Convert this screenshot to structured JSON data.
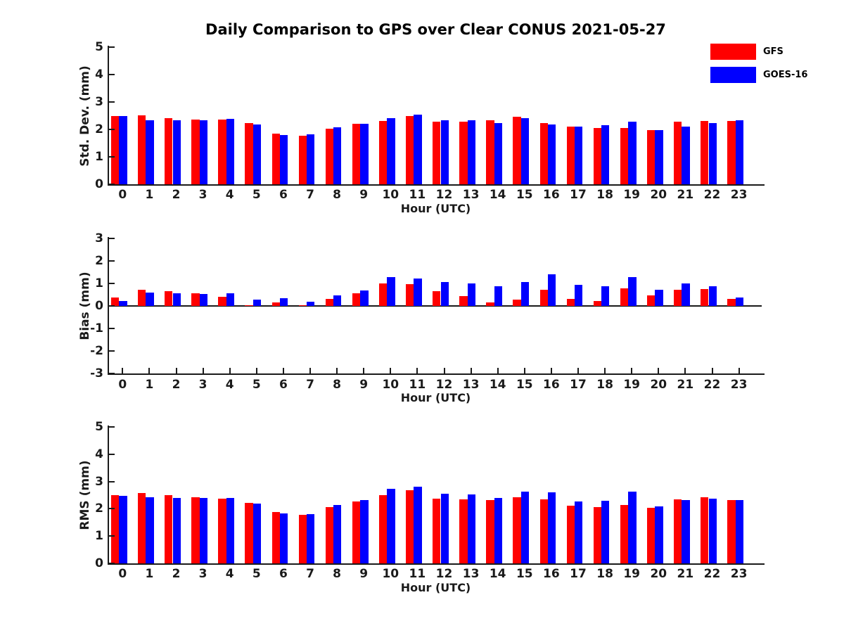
{
  "title": "Daily Comparison to GPS over Clear CONUS 2021-05-27",
  "legend": {
    "items": [
      {
        "label": "GFS",
        "color": "#ff0000"
      },
      {
        "label": "GOES-16",
        "color": "#0000ff"
      }
    ]
  },
  "colors": {
    "axis": "#1a1a1a",
    "background": "#ffffff",
    "gfs": "#ff0000",
    "goes16": "#0000ff"
  },
  "chart_data": [
    {
      "type": "bar",
      "ylabel": "Std. Dev. (mm)",
      "xlabel": "Hour (UTC)",
      "ylim": [
        0,
        5
      ],
      "yticks": [
        0,
        1,
        2,
        3,
        4,
        5
      ],
      "grid": false,
      "legend_position": "upper right outside",
      "categories": [
        "0",
        "1",
        "2",
        "3",
        "4",
        "5",
        "6",
        "7",
        "8",
        "9",
        "10",
        "11",
        "12",
        "13",
        "14",
        "15",
        "16",
        "17",
        "18",
        "19",
        "20",
        "21",
        "22",
        "23"
      ],
      "series": [
        {
          "name": "GFS",
          "color": "#ff0000",
          "values": [
            2.5,
            2.51,
            2.42,
            2.37,
            2.37,
            2.22,
            1.85,
            1.76,
            2.02,
            2.2,
            2.3,
            2.5,
            2.27,
            2.29,
            2.34,
            2.46,
            2.23,
            2.1,
            2.05,
            2.05,
            1.98,
            2.27,
            2.32,
            2.32
          ]
        },
        {
          "name": "GOES-16",
          "color": "#0000ff",
          "values": [
            2.5,
            2.34,
            2.34,
            2.34,
            2.38,
            2.18,
            1.8,
            1.81,
            2.07,
            2.2,
            2.41,
            2.53,
            2.33,
            2.33,
            2.22,
            2.4,
            2.18,
            2.1,
            2.15,
            2.29,
            1.97,
            2.1,
            2.23,
            2.34
          ]
        }
      ]
    },
    {
      "type": "bar",
      "ylabel": "Bias (mm)",
      "xlabel": "Hour (UTC)",
      "ylim": [
        -3,
        3
      ],
      "yticks": [
        -3,
        -2,
        -1,
        0,
        1,
        2,
        3
      ],
      "grid": false,
      "baseline": 0,
      "categories": [
        "0",
        "1",
        "2",
        "3",
        "4",
        "5",
        "6",
        "7",
        "8",
        "9",
        "10",
        "11",
        "12",
        "13",
        "14",
        "15",
        "16",
        "17",
        "18",
        "19",
        "20",
        "21",
        "22",
        "23"
      ],
      "series": [
        {
          "name": "GFS",
          "color": "#ff0000",
          "values": [
            0.38,
            0.72,
            0.67,
            0.55,
            0.4,
            0.03,
            0.15,
            0.03,
            0.3,
            0.55,
            1.0,
            0.97,
            0.67,
            0.45,
            0.17,
            0.27,
            0.72,
            0.31,
            0.21,
            0.78,
            0.47,
            0.72,
            0.75,
            0.3
          ]
        },
        {
          "name": "GOES-16",
          "color": "#0000ff",
          "values": [
            0.22,
            0.6,
            0.57,
            0.52,
            0.55,
            0.27,
            0.33,
            0.2,
            0.48,
            0.7,
            1.27,
            1.23,
            1.07,
            1.01,
            0.88,
            1.07,
            1.42,
            0.95,
            0.88,
            1.29,
            0.73,
            1.0,
            0.88,
            0.38
          ]
        }
      ]
    },
    {
      "type": "bar",
      "ylabel": "RMS (mm)",
      "xlabel": "Hour (UTC)",
      "ylim": [
        0,
        5
      ],
      "yticks": [
        0,
        1,
        2,
        3,
        4,
        5
      ],
      "grid": false,
      "categories": [
        "0",
        "1",
        "2",
        "3",
        "4",
        "5",
        "6",
        "7",
        "8",
        "9",
        "10",
        "11",
        "12",
        "13",
        "14",
        "15",
        "16",
        "17",
        "18",
        "19",
        "20",
        "21",
        "22",
        "23"
      ],
      "series": [
        {
          "name": "GFS",
          "color": "#ff0000",
          "values": [
            2.5,
            2.57,
            2.5,
            2.43,
            2.37,
            2.22,
            1.87,
            1.77,
            2.07,
            2.27,
            2.5,
            2.68,
            2.37,
            2.35,
            2.33,
            2.43,
            2.35,
            2.12,
            2.05,
            2.15,
            2.03,
            2.35,
            2.42,
            2.33
          ]
        },
        {
          "name": "GOES-16",
          "color": "#0000ff",
          "values": [
            2.47,
            2.43,
            2.4,
            2.4,
            2.4,
            2.2,
            1.83,
            1.8,
            2.13,
            2.32,
            2.72,
            2.82,
            2.55,
            2.53,
            2.4,
            2.63,
            2.6,
            2.28,
            2.3,
            2.62,
            2.1,
            2.33,
            2.37,
            2.33
          ]
        }
      ]
    }
  ]
}
